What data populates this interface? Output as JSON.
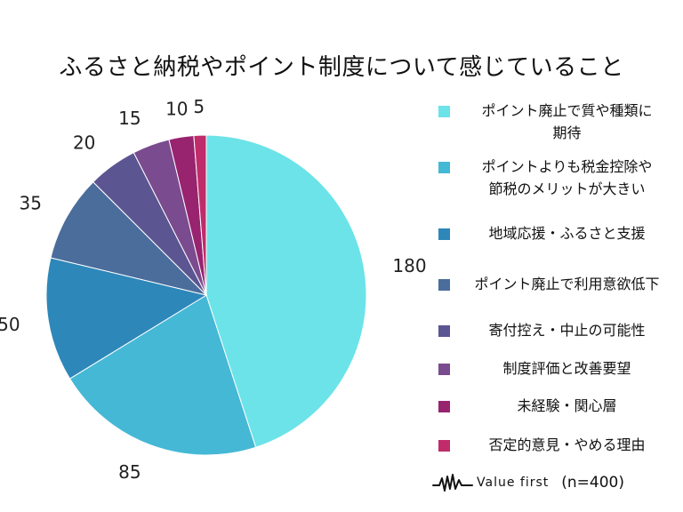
{
  "chart_data": {
    "type": "pie",
    "title": "ふるさと納税やポイント制度について感じていること",
    "total": 400,
    "categories": [
      "ポイント廃止で質や種類に期待",
      "ポイントよりも税金控除や節税のメリットが大きい",
      "地域応援・ふるさと支援",
      "ポイント廃止で利用意欲低下",
      "寄付控え・中止の可能性",
      "制度評価と改善要望",
      "未経験・関心層",
      "否定的意見・やめる理由"
    ],
    "values": [
      180,
      85,
      50,
      35,
      20,
      15,
      10,
      5
    ],
    "colors": [
      "#6ce3e8",
      "#45b8d6",
      "#2e87b9",
      "#4a6d9c",
      "#5b5592",
      "#7a4b8f",
      "#98236f",
      "#c02c6a"
    ],
    "legend_position": "right"
  },
  "legend": [
    {
      "line1": "ポイント廃止で質や種類に",
      "line2": "期待"
    },
    {
      "line1": "ポイントよりも税金控除や",
      "line2": "節税のメリットが大きい"
    },
    {
      "line1": "地域応援・ふるさと支援",
      "line2": ""
    },
    {
      "line1": "ポイント廃止で利用意欲低下",
      "line2": ""
    },
    {
      "line1": "寄付控え・中止の可能性",
      "line2": ""
    },
    {
      "line1": "制度評価と改善要望",
      "line2": ""
    },
    {
      "line1": "未経験・関心層",
      "line2": ""
    },
    {
      "line1": "否定的意見・やめる理由",
      "line2": ""
    }
  ],
  "footer": {
    "brand": "Value first",
    "sample": "(n=400)"
  }
}
